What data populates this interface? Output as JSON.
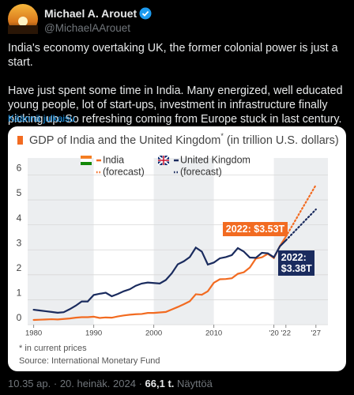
{
  "post": {
    "name": "Michael A. Arouet",
    "handle": "@MichaelAArouet",
    "text": [
      "India's economy overtaking UK, the former colonial power is just a start.",
      "Have just spent some time in India. Many energized, well educated young people, lot of start-ups, investment in infrastructure finally picking up. So refreshing coming from Europe stuck in last century."
    ],
    "translate": "Käännä julkaisu",
    "footer": {
      "time": "10.35 ap.",
      "separator": "·",
      "date": "20. heinäk. 2024",
      "views": "66,1 t.",
      "views_label": "Näyttöä"
    }
  },
  "chart_data": {
    "type": "line",
    "title": "GDP of India and the United Kingdom",
    "title_mark": "*",
    "title_suffix": "(in trillion U.S. dollars)",
    "xlim": [
      1979,
      2029
    ],
    "ylim": [
      0,
      6.3
    ],
    "xticks": [
      1980,
      1990,
      2000,
      2010,
      {
        "value": 2020,
        "label": "'20"
      },
      {
        "value": 2022,
        "label": "'22"
      },
      {
        "value": 2027,
        "label": "'27"
      }
    ],
    "yticks": [
      0,
      1,
      2,
      3,
      4,
      5,
      6
    ],
    "grid": true,
    "series": [
      {
        "name": "India",
        "color": "#f26b21",
        "style": "solid",
        "x": [
          1980,
          1981,
          1982,
          1983,
          1984,
          1985,
          1986,
          1987,
          1988,
          1989,
          1990,
          1991,
          1992,
          1993,
          1994,
          1995,
          1996,
          1997,
          1998,
          1999,
          2000,
          2001,
          2002,
          2003,
          2004,
          2005,
          2006,
          2007,
          2008,
          2009,
          2010,
          2011,
          2012,
          2013,
          2014,
          2015,
          2016,
          2017,
          2018,
          2019,
          2020,
          2021,
          2022
        ],
        "values": [
          0.19,
          0.2,
          0.21,
          0.22,
          0.21,
          0.23,
          0.25,
          0.28,
          0.3,
          0.3,
          0.32,
          0.27,
          0.29,
          0.28,
          0.33,
          0.37,
          0.4,
          0.42,
          0.43,
          0.47,
          0.47,
          0.49,
          0.51,
          0.61,
          0.71,
          0.82,
          0.94,
          1.22,
          1.2,
          1.34,
          1.68,
          1.82,
          1.83,
          1.86,
          2.04,
          2.1,
          2.29,
          2.65,
          2.7,
          2.84,
          2.67,
          3.15,
          3.53
        ]
      },
      {
        "name": "(forecast)",
        "color": "#f26b21",
        "style": "dotted",
        "x": [
          2022,
          2027
        ],
        "values": [
          3.53,
          5.6
        ]
      },
      {
        "name": "United Kingdom",
        "color": "#1a2b5e",
        "style": "solid",
        "x": [
          1980,
          1981,
          1982,
          1983,
          1984,
          1985,
          1986,
          1987,
          1988,
          1989,
          1990,
          1991,
          1992,
          1993,
          1994,
          1995,
          1996,
          1997,
          1998,
          1999,
          2000,
          2001,
          2002,
          2003,
          2004,
          2005,
          2006,
          2007,
          2008,
          2009,
          2010,
          2011,
          2012,
          2013,
          2014,
          2015,
          2016,
          2017,
          2018,
          2019,
          2020,
          2021,
          2022
        ],
        "values": [
          0.6,
          0.57,
          0.54,
          0.51,
          0.48,
          0.5,
          0.62,
          0.76,
          0.93,
          0.93,
          1.19,
          1.24,
          1.28,
          1.14,
          1.23,
          1.34,
          1.42,
          1.56,
          1.65,
          1.69,
          1.67,
          1.65,
          1.79,
          2.06,
          2.42,
          2.54,
          2.71,
          3.09,
          2.93,
          2.41,
          2.49,
          2.66,
          2.71,
          2.79,
          3.07,
          2.93,
          2.69,
          2.68,
          2.88,
          2.86,
          2.7,
          3.14,
          3.38
        ]
      },
      {
        "name": "(forecast)",
        "color": "#1a2b5e",
        "style": "dotted",
        "x": [
          2022,
          2027
        ],
        "values": [
          3.38,
          4.62
        ]
      }
    ],
    "annotations": [
      {
        "text": "2022: $3.53T",
        "color": "#f26b21"
      },
      {
        "text": "2022: $3.38T",
        "color": "#1a2b5e"
      }
    ],
    "footnote": "* in current prices",
    "source": "Source: International Monetary Fund"
  }
}
